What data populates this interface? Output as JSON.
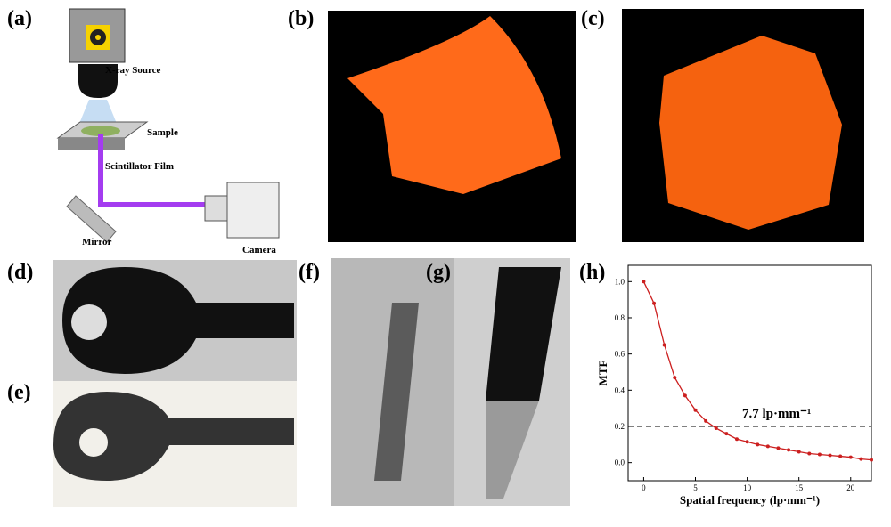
{
  "panel_labels": [
    "(a)",
    "(b)",
    "(c)",
    "(d)",
    "(e)",
    "(f)",
    "(g)",
    "(h)"
  ],
  "diagram": {
    "labels": [
      "X-ray Source",
      "Sample",
      "Scintillator Film",
      "Mirror",
      "Camera"
    ]
  },
  "chart_data": {
    "type": "line",
    "xlabel": "Spatial frequency (lp·mm⁻¹)",
    "ylabel": "MTF",
    "annotation": "7.7 lp·mm⁻¹",
    "hline": 0.2,
    "x": [
      0,
      1,
      2,
      3,
      4,
      5,
      6,
      7,
      8,
      9,
      10,
      11,
      12,
      13,
      14,
      15,
      16,
      17,
      18,
      19,
      20,
      21,
      22
    ],
    "series": [
      {
        "name": "MTF",
        "color": "#cc1f1f",
        "values": [
          1.0,
          0.88,
          0.65,
          0.47,
          0.37,
          0.29,
          0.23,
          0.19,
          0.16,
          0.13,
          0.115,
          0.1,
          0.09,
          0.08,
          0.07,
          0.06,
          0.05,
          0.045,
          0.04,
          0.035,
          0.03,
          0.02,
          0.015
        ]
      }
    ],
    "xlim": [
      -1.5,
      22
    ],
    "ylim": [
      -0.1,
      1.09
    ],
    "xticks": [
      0,
      5,
      10,
      15,
      20
    ],
    "yticks": [
      {
        "value": 0,
        "label": "0.0"
      },
      0.2,
      0.4,
      0.6,
      0.8,
      {
        "value": 1,
        "label": "1.0"
      }
    ]
  }
}
